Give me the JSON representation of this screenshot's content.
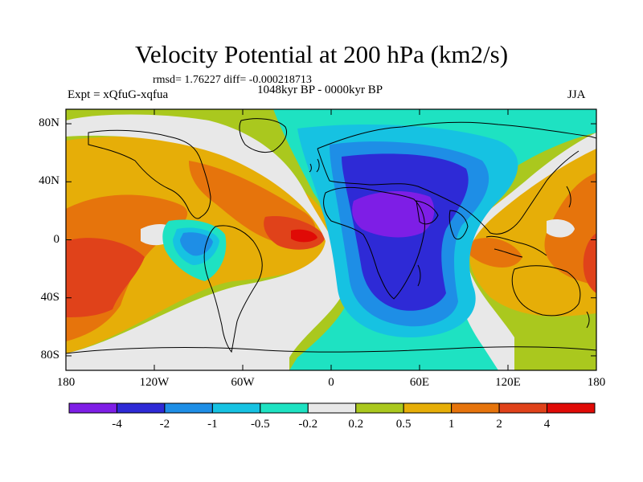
{
  "figure": {
    "title": "Velocity Potential at 200 hPa (km2/s)",
    "stats": "rmsd= 1.76227 diff= -0.000218713",
    "left_label": "Expt = xQfuG-xqfua",
    "center_label": "1048kyr BP - 0000kyr BP",
    "right_label": "JJA"
  },
  "map": {
    "projection": "cylindrical-equidistant",
    "lon_range": [
      -180,
      180
    ],
    "lat_range": [
      -90,
      90
    ],
    "lon_ticks": [
      {
        "value": -180,
        "label": "180"
      },
      {
        "value": -120,
        "label": "120W"
      },
      {
        "value": -60,
        "label": "60W"
      },
      {
        "value": 0,
        "label": "0"
      },
      {
        "value": 60,
        "label": "60E"
      },
      {
        "value": 120,
        "label": "120E"
      },
      {
        "value": 180,
        "label": "180"
      }
    ],
    "lat_ticks": [
      {
        "value": 80,
        "label": "80N"
      },
      {
        "value": 40,
        "label": "40N"
      },
      {
        "value": 0,
        "label": "0"
      },
      {
        "value": -40,
        "label": "40S"
      },
      {
        "value": -80,
        "label": "80S"
      }
    ],
    "overlay": "coastlines"
  },
  "colorbar": {
    "boundaries": [
      "-4",
      "-2",
      "-1",
      "-0.5",
      "-0.2",
      "0.2",
      "0.5",
      "1",
      "2",
      "4"
    ],
    "colors": [
      "#7e1ee6",
      "#2e2ad6",
      "#1e8ee6",
      "#16c2e2",
      "#1ee2c2",
      "#e8e8e8",
      "#aac81e",
      "#e6ae08",
      "#e6740c",
      "#e0421a",
      "#e00a06"
    ]
  },
  "colors": {
    "bin_-4": "#7e1ee6",
    "bin_-3": "#2e2ad6",
    "bin_-2": "#1e8ee6",
    "bin_-1": "#16c2e2",
    "bin_0": "#1ee2c2",
    "neutral": "#e8e8e8",
    "bin_1": "#aac81e",
    "bin_2": "#e6ae08",
    "bin_3": "#e6740c",
    "bin_4": "#e0421a",
    "bin_5": "#e00a06"
  }
}
